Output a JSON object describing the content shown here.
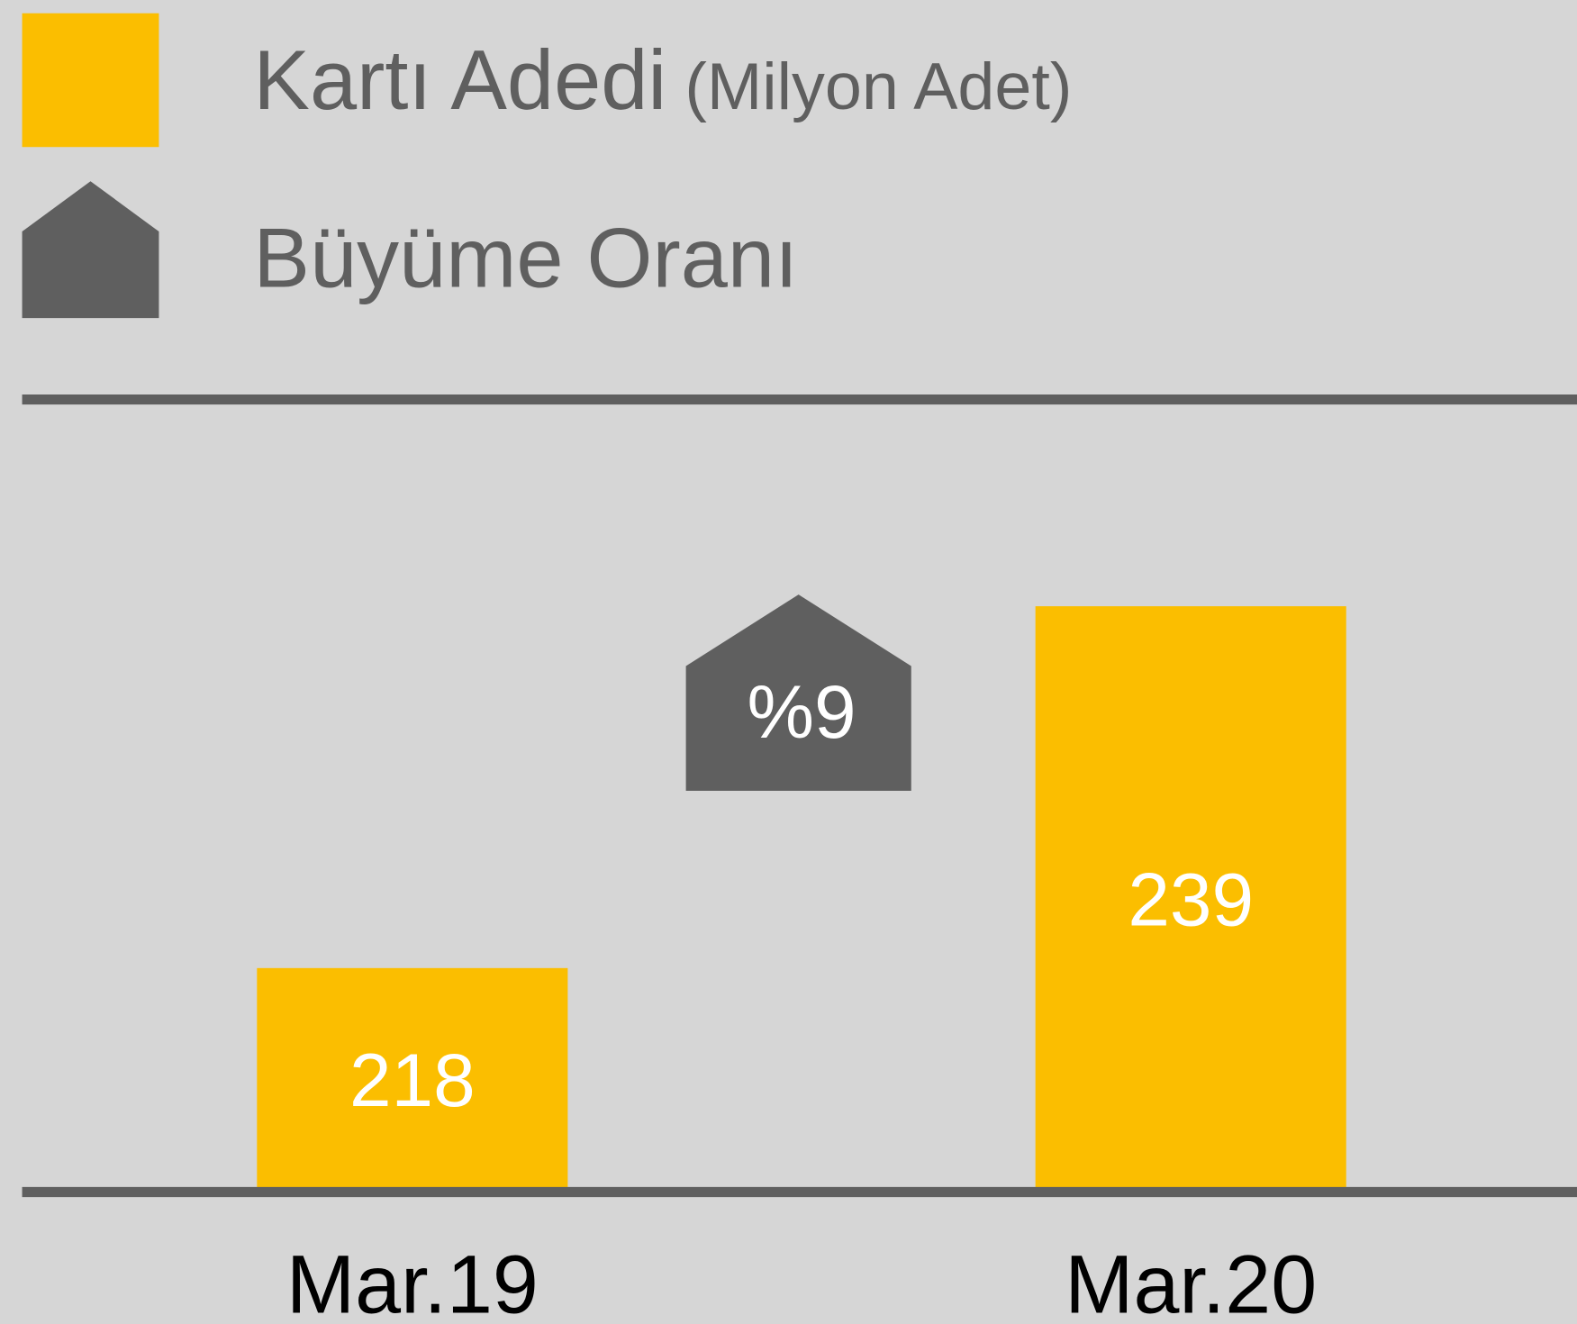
{
  "chart_data": {
    "type": "bar",
    "series": [
      {
        "name": "Kartı Adedi",
        "unit": "(Milyon Adet)",
        "color": "#fbbe00",
        "values": [
          218,
          239
        ]
      }
    ],
    "categories": [
      "Mar.19",
      "Mar.20"
    ],
    "growth": {
      "name": "Büyüme Oranı",
      "color": "#5f5f5f",
      "value": 9,
      "label": "%9"
    },
    "ylim": [
      205,
      251
    ]
  }
}
